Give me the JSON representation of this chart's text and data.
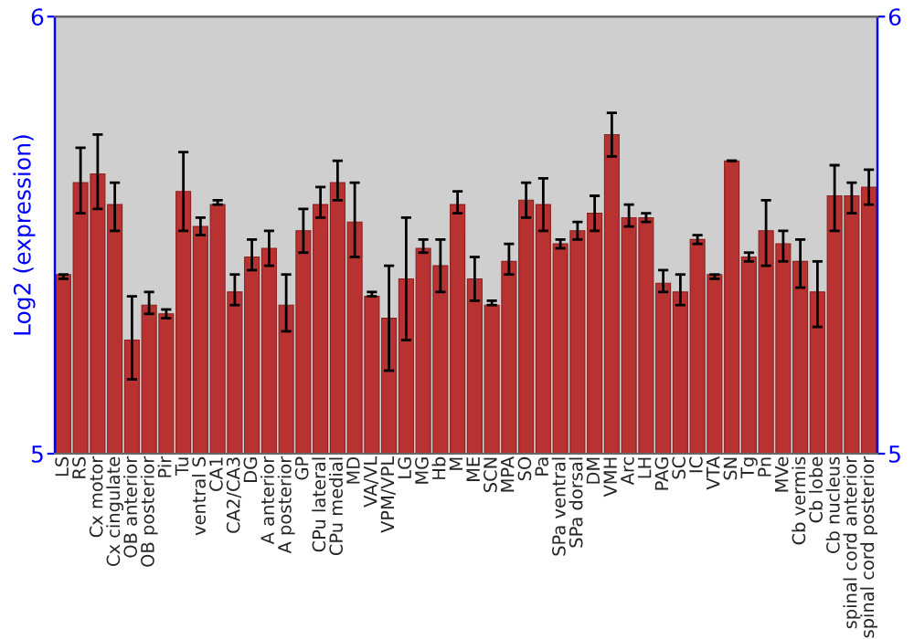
{
  "chart_data": {
    "type": "bar",
    "ylabel": "Log2 (expression)",
    "categories": [
      "LS",
      "RS",
      "Cx motor",
      "Cx cingulate",
      "OB anterior",
      "OB posterior",
      "Pir",
      "Tu",
      "ventral S",
      "CA1",
      "CA2/CA3",
      "DG",
      "A anterior",
      "A posterior",
      "GP",
      "CPu lateral",
      "CPu medial",
      "MD",
      "VA/VL",
      "VPM/VPL",
      "LG",
      "MG",
      "Hb",
      "M",
      "ME",
      "SCN",
      "MPA",
      "SO",
      "Pa",
      "SPa ventral",
      "SPa dorsal",
      "DM",
      "VMH",
      "Arc",
      "LH",
      "PAG",
      "SC",
      "IC",
      "VTA",
      "SN",
      "Tg",
      "Pn",
      "MVe",
      "Cb vermis",
      "Cb lobe",
      "Cb nucleus",
      "spinal cord anterior",
      "spinal cord posterior"
    ],
    "values": [
      5.41,
      5.62,
      5.64,
      5.57,
      5.26,
      5.34,
      5.32,
      5.6,
      5.52,
      5.57,
      5.37,
      5.45,
      5.47,
      5.34,
      5.51,
      5.57,
      5.62,
      5.53,
      5.36,
      5.31,
      5.4,
      5.47,
      5.43,
      5.57,
      5.4,
      5.34,
      5.44,
      5.58,
      5.57,
      5.48,
      5.51,
      5.55,
      5.73,
      5.54,
      5.54,
      5.39,
      5.37,
      5.49,
      5.41,
      5.67,
      5.45,
      5.51,
      5.48,
      5.44,
      5.37,
      5.59,
      5.59,
      5.61
    ],
    "errors": [
      [
        5.4,
        5.41
      ],
      [
        5.55,
        5.7
      ],
      [
        5.56,
        5.73
      ],
      [
        5.51,
        5.62
      ],
      [
        5.17,
        5.36
      ],
      [
        5.32,
        5.37
      ],
      [
        5.31,
        5.33
      ],
      [
        5.51,
        5.69
      ],
      [
        5.5,
        5.54
      ],
      [
        5.57,
        5.58
      ],
      [
        5.34,
        5.41
      ],
      [
        5.42,
        5.49
      ],
      [
        5.43,
        5.51
      ],
      [
        5.28,
        5.41
      ],
      [
        5.46,
        5.56
      ],
      [
        5.54,
        5.61
      ],
      [
        5.58,
        5.67
      ],
      [
        5.45,
        5.62
      ],
      [
        5.36,
        5.37
      ],
      [
        5.19,
        5.43
      ],
      [
        5.26,
        5.54
      ],
      [
        5.46,
        5.49
      ],
      [
        5.37,
        5.49
      ],
      [
        5.55,
        5.6
      ],
      [
        5.35,
        5.45
      ],
      [
        5.34,
        5.35
      ],
      [
        5.41,
        5.48
      ],
      [
        5.54,
        5.62
      ],
      [
        5.51,
        5.63
      ],
      [
        5.47,
        5.49
      ],
      [
        5.49,
        5.53
      ],
      [
        5.51,
        5.59
      ],
      [
        5.68,
        5.78
      ],
      [
        5.52,
        5.57
      ],
      [
        5.53,
        5.55
      ],
      [
        5.37,
        5.42
      ],
      [
        5.34,
        5.41
      ],
      [
        5.48,
        5.5
      ],
      [
        5.4,
        5.41
      ],
      [
        5.67,
        5.67
      ],
      [
        5.44,
        5.46
      ],
      [
        5.43,
        5.58
      ],
      [
        5.44,
        5.51
      ],
      [
        5.38,
        5.49
      ],
      [
        5.29,
        5.44
      ],
      [
        5.51,
        5.66
      ],
      [
        5.55,
        5.62
      ],
      [
        5.57,
        5.65
      ]
    ],
    "color": "#b83232",
    "ylim": [
      5,
      6
    ],
    "yticks": [
      5,
      6
    ],
    "y2lim": [
      5,
      6
    ],
    "y2ticks": [
      5,
      6
    ]
  }
}
